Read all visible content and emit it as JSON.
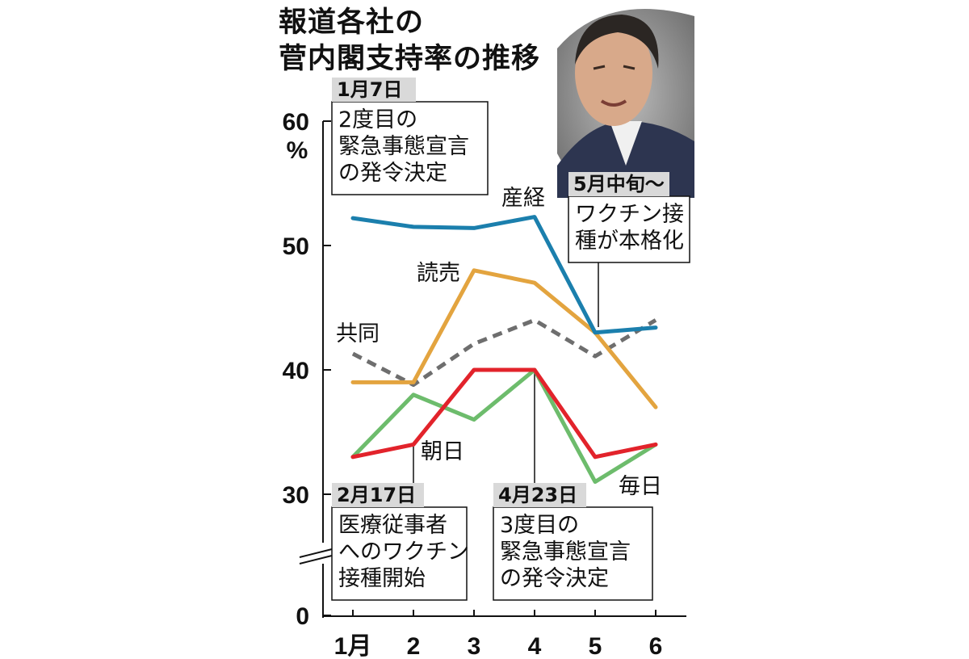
{
  "title_lines": [
    "報道各社の",
    "菅内閣支持率の推移"
  ],
  "y_unit": "%",
  "annotations": [
    {
      "date": "1月7日",
      "lines": [
        "2度目の",
        "緊急事態宣言",
        "の発令決定"
      ]
    },
    {
      "date": "2月17日",
      "lines": [
        "医療従事者",
        "へのワクチン",
        "接種開始"
      ]
    },
    {
      "date": "4月23日",
      "lines": [
        "3度目の",
        "緊急事態宣言",
        "の発令決定"
      ]
    },
    {
      "date": "5月中旬～",
      "lines": [
        "ワクチン接",
        "種が本格化"
      ]
    }
  ],
  "chart_data": {
    "type": "line",
    "title": "報道各社の菅内閣支持率の推移",
    "ylabel": "%",
    "x_tick_labels": [
      "1月",
      "2",
      "3",
      "4",
      "5",
      "6"
    ],
    "y_ticks": [
      0,
      30,
      40,
      50,
      60
    ],
    "ylim": [
      0,
      60
    ],
    "y_axis_break": [
      0,
      30
    ],
    "grid": false,
    "legend": "inline labels",
    "series": [
      {
        "name": "産経",
        "color": "#1b7fad",
        "style": "solid",
        "values": [
          52.2,
          51.5,
          51.4,
          52.3,
          43.0,
          43.4
        ]
      },
      {
        "name": "読売",
        "color": "#e3a43f",
        "style": "solid",
        "values": [
          39.0,
          39.0,
          48.0,
          47.0,
          43.0,
          37.0
        ]
      },
      {
        "name": "共同",
        "color": "#6e6e6e",
        "style": "dashed",
        "values": [
          41.3,
          38.8,
          42.1,
          44.0,
          41.1,
          44.0
        ]
      },
      {
        "name": "朝日",
        "color": "#e2232b",
        "style": "solid",
        "values": [
          33.0,
          34.0,
          40.0,
          40.0,
          33.0,
          34.0
        ]
      },
      {
        "name": "毎日",
        "color": "#6dbc6c",
        "style": "solid",
        "values": [
          33.0,
          38.0,
          36.0,
          40.0,
          31.0,
          34.0
        ]
      }
    ]
  }
}
